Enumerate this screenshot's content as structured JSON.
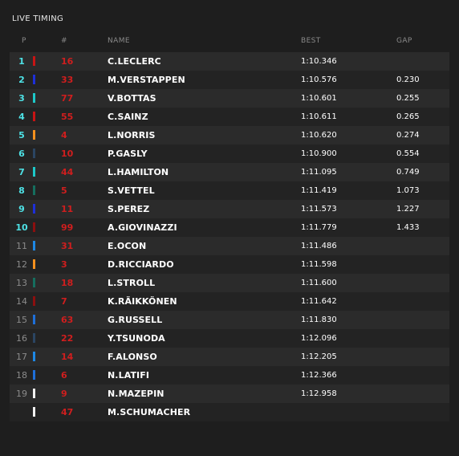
{
  "panel": {
    "title": "LIVE TIMING"
  },
  "header": {
    "pos": "P",
    "num": "#",
    "name": "NAME",
    "best": "BEST",
    "gap": "GAP"
  },
  "colors": {
    "position_top10": "#4ee2e6",
    "position_other": "#8b8b8b",
    "car_number": "#d01e1e"
  },
  "rows": [
    {
      "pos": "1",
      "num": "16",
      "name": "C.LECLERC",
      "best": "1:10.346",
      "gap": "",
      "team_color": "#c81414"
    },
    {
      "pos": "2",
      "num": "33",
      "name": "M.VERSTAPPEN",
      "best": "1:10.576",
      "gap": "0.230",
      "team_color": "#1d2fd9"
    },
    {
      "pos": "3",
      "num": "77",
      "name": "V.BOTTAS",
      "best": "1:10.601",
      "gap": "0.255",
      "team_color": "#1dc9c9"
    },
    {
      "pos": "4",
      "num": "55",
      "name": "C.SAINZ",
      "best": "1:10.611",
      "gap": "0.265",
      "team_color": "#c81414"
    },
    {
      "pos": "5",
      "num": "4",
      "name": "L.NORRIS",
      "best": "1:10.620",
      "gap": "0.274",
      "team_color": "#f5911e"
    },
    {
      "pos": "6",
      "num": "10",
      "name": "P.GASLY",
      "best": "1:10.900",
      "gap": "0.554",
      "team_color": "#2b4562"
    },
    {
      "pos": "7",
      "num": "44",
      "name": "L.HAMILTON",
      "best": "1:11.095",
      "gap": "0.749",
      "team_color": "#1dc9c9"
    },
    {
      "pos": "8",
      "num": "5",
      "name": "S.VETTEL",
      "best": "1:11.419",
      "gap": "1.073",
      "team_color": "#156e5e"
    },
    {
      "pos": "9",
      "num": "11",
      "name": "S.PEREZ",
      "best": "1:11.573",
      "gap": "1.227",
      "team_color": "#1d2fd9"
    },
    {
      "pos": "10",
      "num": "99",
      "name": "A.GIOVINAZZI",
      "best": "1:11.779",
      "gap": "1.433",
      "team_color": "#8c0f0f"
    },
    {
      "pos": "11",
      "num": "31",
      "name": "E.OCON",
      "best": "1:11.486",
      "gap": "",
      "team_color": "#1e88e5"
    },
    {
      "pos": "12",
      "num": "3",
      "name": "D.RICCIARDO",
      "best": "1:11.598",
      "gap": "",
      "team_color": "#f5911e"
    },
    {
      "pos": "13",
      "num": "18",
      "name": "L.STROLL",
      "best": "1:11.600",
      "gap": "",
      "team_color": "#156e5e"
    },
    {
      "pos": "14",
      "num": "7",
      "name": "K.RÄIKKÖNEN",
      "best": "1:11.642",
      "gap": "",
      "team_color": "#8c0f0f"
    },
    {
      "pos": "15",
      "num": "63",
      "name": "G.RUSSELL",
      "best": "1:11.830",
      "gap": "",
      "team_color": "#1e6fd9"
    },
    {
      "pos": "16",
      "num": "22",
      "name": "Y.TSUNODA",
      "best": "1:12.096",
      "gap": "",
      "team_color": "#2b4562"
    },
    {
      "pos": "17",
      "num": "14",
      "name": "F.ALONSO",
      "best": "1:12.205",
      "gap": "",
      "team_color": "#1e88e5"
    },
    {
      "pos": "18",
      "num": "6",
      "name": "N.LATIFI",
      "best": "1:12.366",
      "gap": "",
      "team_color": "#1e6fd9"
    },
    {
      "pos": "19",
      "num": "9",
      "name": "N.MAZEPIN",
      "best": "1:12.958",
      "gap": "",
      "team_color": "#f0f0f0"
    },
    {
      "pos": "",
      "num": "47",
      "name": "M.SCHUMACHER",
      "best": "",
      "gap": "",
      "team_color": "#f0f0f0"
    }
  ]
}
